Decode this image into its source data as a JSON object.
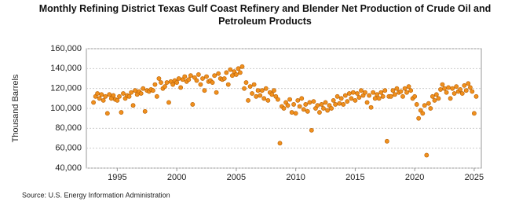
{
  "chart_data": {
    "type": "scatter",
    "title": "Monthly Refining District Texas Gulf Coast Refinery and Blender Net Production of Crude Oil and Petroleum Products",
    "y_label": "Thousand Barrels",
    "source": "Source: U.S. Energy Information Administration",
    "xlim": [
      1992.4,
      2025.6
    ],
    "ylim": [
      40000,
      160000
    ],
    "xticks": [
      1995,
      2000,
      2005,
      2010,
      2015,
      2020,
      2025
    ],
    "yticks": [
      {
        "value": 40000,
        "label": "40,000"
      },
      {
        "value": 60000,
        "label": "60,000"
      },
      {
        "value": 80000,
        "label": "80,000"
      },
      {
        "value": 100000,
        "label": "100,000"
      },
      {
        "value": 120000,
        "label": "120,000"
      },
      {
        "value": 140000,
        "label": "140,000"
      },
      {
        "value": 160000,
        "label": "160,000"
      }
    ],
    "grid": true,
    "color": "#f0901e",
    "x": [
      1993,
      1993.17,
      1993.33,
      1993.5,
      1993.67,
      1993.83,
      1994,
      1994.17,
      1994.33,
      1994.5,
      1994.67,
      1994.83,
      1995,
      1995.17,
      1995.33,
      1995.5,
      1995.67,
      1995.83,
      1996,
      1996.17,
      1996.33,
      1996.5,
      1996.67,
      1996.83,
      1997,
      1997.17,
      1997.33,
      1997.5,
      1997.67,
      1997.83,
      1998,
      1998.17,
      1998.33,
      1998.5,
      1998.67,
      1998.83,
      1999,
      1999.17,
      1999.33,
      1999.5,
      1999.67,
      1999.83,
      2000,
      2000.17,
      2000.33,
      2000.5,
      2000.67,
      2000.83,
      2001,
      2001.17,
      2001.33,
      2001.5,
      2001.67,
      2001.83,
      2002,
      2002.17,
      2002.33,
      2002.5,
      2002.67,
      2002.83,
      2003,
      2003.17,
      2003.33,
      2003.5,
      2003.67,
      2003.83,
      2004,
      2004.17,
      2004.33,
      2004.5,
      2004.67,
      2004.83,
      2005,
      2005.17,
      2005.33,
      2005.5,
      2005.67,
      2005.83,
      2006,
      2006.17,
      2006.33,
      2006.5,
      2006.67,
      2006.83,
      2007,
      2007.17,
      2007.33,
      2007.5,
      2007.67,
      2007.83,
      2008,
      2008.17,
      2008.33,
      2008.5,
      2008.67,
      2008.83,
      2009,
      2009.17,
      2009.33,
      2009.5,
      2009.67,
      2009.83,
      2010,
      2010.17,
      2010.33,
      2010.5,
      2010.67,
      2010.83,
      2011,
      2011.17,
      2011.33,
      2011.5,
      2011.67,
      2011.83,
      2012,
      2012.17,
      2012.33,
      2012.5,
      2012.67,
      2012.83,
      2013,
      2013.17,
      2013.33,
      2013.5,
      2013.67,
      2013.83,
      2014,
      2014.17,
      2014.33,
      2014.5,
      2014.67,
      2014.83,
      2015,
      2015.17,
      2015.33,
      2015.5,
      2015.67,
      2015.83,
      2016,
      2016.17,
      2016.33,
      2016.5,
      2016.67,
      2016.83,
      2017,
      2017.17,
      2017.33,
      2017.5,
      2017.67,
      2017.83,
      2018,
      2018.17,
      2018.33,
      2018.5,
      2018.67,
      2018.83,
      2019,
      2019.17,
      2019.33,
      2019.5,
      2019.67,
      2019.83,
      2020,
      2020.17,
      2020.33,
      2020.5,
      2020.67,
      2020.83,
      2021,
      2021.17,
      2021.33,
      2021.5,
      2021.67,
      2021.83,
      2022,
      2022.17,
      2022.33,
      2022.5,
      2022.67,
      2022.83,
      2023,
      2023.17,
      2023.33,
      2023.5,
      2023.67,
      2023.83,
      2024,
      2024.17,
      2024.33,
      2024.5,
      2024.67,
      2024.83,
      2025,
      2025.17
    ],
    "values": [
      106000,
      112000,
      115000,
      110000,
      114000,
      108000,
      112000,
      95000,
      114000,
      110000,
      113000,
      109000,
      108000,
      112000,
      96000,
      115000,
      110000,
      113000,
      112000,
      116000,
      103000,
      118000,
      114000,
      117000,
      115000,
      120000,
      97000,
      118000,
      117000,
      119000,
      118000,
      124000,
      112000,
      130000,
      126000,
      120000,
      122000,
      126000,
      106000,
      127000,
      124000,
      128000,
      126000,
      130000,
      121000,
      129000,
      132000,
      127000,
      129000,
      133000,
      104000,
      131000,
      128000,
      134000,
      124000,
      130000,
      118000,
      132000,
      127000,
      128000,
      126000,
      133000,
      116000,
      135000,
      130000,
      129000,
      130000,
      136000,
      124000,
      139000,
      133000,
      137000,
      134000,
      140000,
      136000,
      142000,
      120000,
      126000,
      108000,
      122000,
      115000,
      124000,
      112000,
      118000,
      113000,
      118000,
      110000,
      120000,
      108000,
      116000,
      114000,
      118000,
      112000,
      109000,
      65000,
      102000,
      100000,
      106000,
      103000,
      109000,
      96000,
      104000,
      95000,
      108000,
      102000,
      110000,
      99000,
      104000,
      97000,
      106000,
      78000,
      107000,
      100000,
      103000,
      96000,
      104000,
      100000,
      106000,
      98000,
      103000,
      100000,
      108000,
      104000,
      112000,
      105000,
      110000,
      104000,
      113000,
      107000,
      115000,
      110000,
      116000,
      108000,
      115000,
      111000,
      118000,
      113000,
      116000,
      106000,
      113000,
      101000,
      116000,
      110000,
      114000,
      110000,
      116000,
      112000,
      118000,
      67000,
      112000,
      112000,
      118000,
      114000,
      120000,
      116000,
      117000,
      112000,
      120000,
      116000,
      122000,
      118000,
      110000,
      112000,
      104000,
      90000,
      98000,
      95000,
      103000,
      53000,
      105000,
      100000,
      112000,
      108000,
      114000,
      110000,
      119000,
      124000,
      120000,
      116000,
      121000,
      110000,
      120000,
      115000,
      122000,
      117000,
      119000,
      115000,
      123000,
      118000,
      125000,
      121000,
      117000,
      95000,
      112000
    ]
  }
}
